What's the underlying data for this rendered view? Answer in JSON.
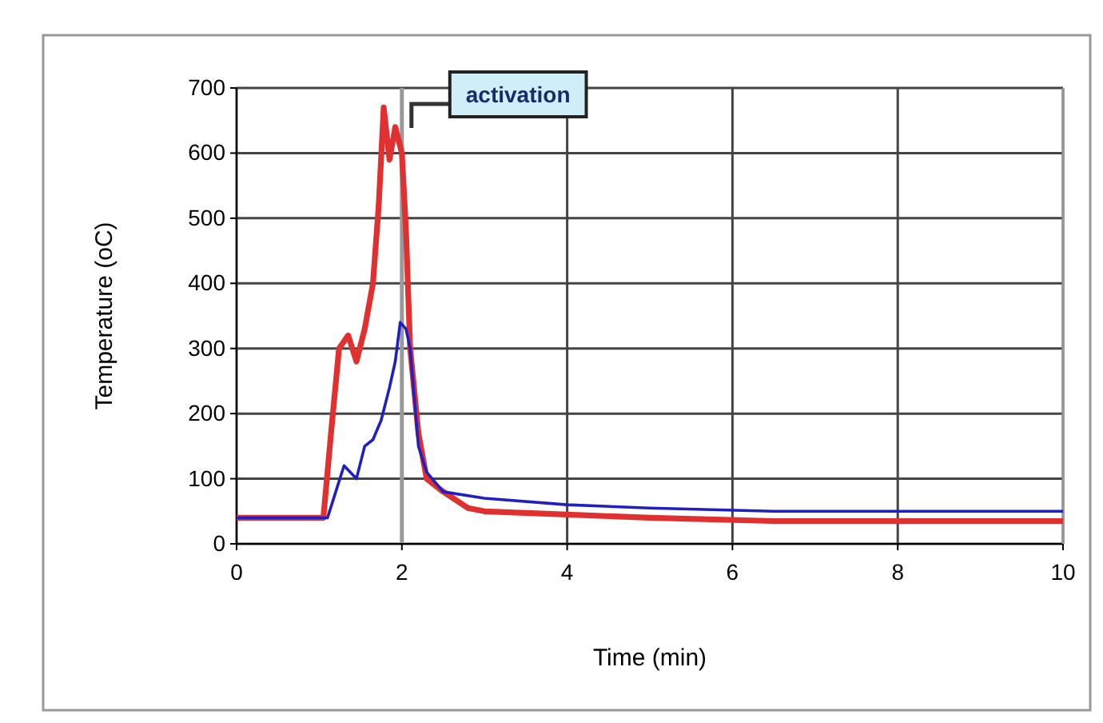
{
  "chart_data": {
    "type": "line",
    "xlabel": "Time (min)",
    "ylabel": "Temperature (oC)",
    "xlim": [
      0,
      10
    ],
    "xticks": [
      0,
      2,
      4,
      6,
      8,
      10
    ],
    "ylim": [
      0,
      700
    ],
    "yticks": [
      0,
      100,
      200,
      300,
      400,
      500,
      600,
      700
    ],
    "grid": true,
    "marker": "none",
    "line_style": "solid",
    "ref_lines": [
      {
        "axis": "x",
        "value": 2,
        "label": "activation",
        "color": "#999999"
      }
    ],
    "series": [
      {
        "color": "#e03030",
        "x": [
          0,
          0.5,
          1.05,
          1.15,
          1.24,
          1.35,
          1.45,
          1.55,
          1.65,
          1.72,
          1.78,
          1.85,
          1.92,
          2.0,
          2.05,
          2.1,
          2.2,
          2.3,
          2.5,
          2.8,
          3,
          4,
          5,
          6.5,
          8,
          10
        ],
        "values": [
          40,
          40,
          40,
          180,
          300,
          320,
          280,
          330,
          400,
          520,
          670,
          590,
          640,
          600,
          480,
          300,
          170,
          100,
          80,
          55,
          50,
          45,
          40,
          35,
          35,
          35
        ]
      },
      {
        "color": "#2020c0",
        "x": [
          0,
          0.5,
          1.1,
          1.2,
          1.3,
          1.45,
          1.55,
          1.65,
          1.75,
          1.85,
          1.92,
          1.98,
          2.05,
          2.1,
          2.2,
          2.3,
          2.5,
          3,
          4,
          5,
          6.5,
          8,
          10
        ],
        "values": [
          40,
          40,
          40,
          80,
          120,
          100,
          150,
          160,
          190,
          240,
          280,
          340,
          330,
          300,
          150,
          110,
          80,
          70,
          60,
          55,
          50,
          50,
          50
        ]
      }
    ]
  }
}
